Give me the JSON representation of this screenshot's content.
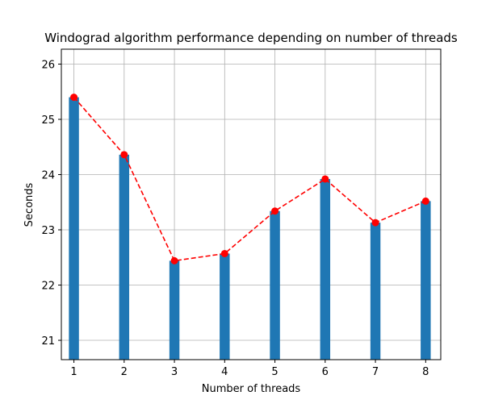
{
  "chart_data": {
    "type": "bar",
    "title": "Windograd algorithm performance depending on number of threads",
    "xlabel": "Number of threads",
    "ylabel": "Seconds",
    "x": [
      1,
      2,
      3,
      4,
      5,
      6,
      7,
      8
    ],
    "values": [
      25.4,
      24.36,
      22.44,
      22.57,
      23.34,
      23.92,
      23.13,
      23.52
    ],
    "xticks": [
      "1",
      "2",
      "3",
      "4",
      "5",
      "6",
      "7",
      "8"
    ],
    "yticks": [
      21,
      22,
      23,
      24,
      25,
      26
    ],
    "xlim": [
      0.75,
      8.3
    ],
    "ylim": [
      20.65,
      26.27
    ],
    "grid": true,
    "bar_color": "#1f77b4",
    "line": {
      "style": "dashed",
      "color": "#ff0000",
      "marker": "circle"
    }
  }
}
